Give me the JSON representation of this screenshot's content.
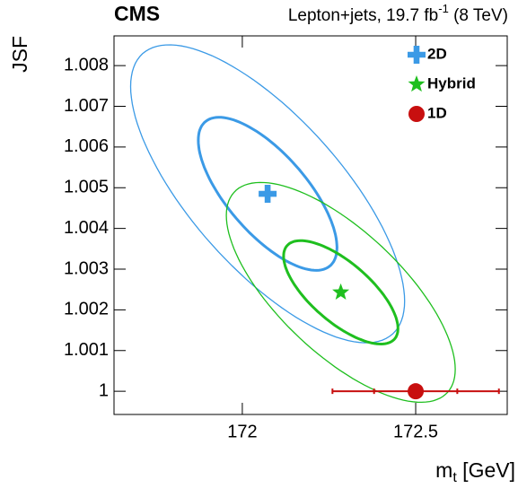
{
  "chart_data": {
    "type": "scatter",
    "title": "CMS",
    "subtitle": "Lepton+jets, 19.7 fb",
    "subtitle_sup": "-1",
    "subtitle_end": " (8 TeV)",
    "x_label": "m",
    "x_label_sub": "t",
    "x_label_end": " [GeV]",
    "y_label": "JSF",
    "xlim": [
      171.63,
      172.764
    ],
    "ylim": [
      0.99943,
      1.00873
    ],
    "xticks": [
      172,
      172.5
    ],
    "yticks": [
      1,
      1.001,
      1.002,
      1.003,
      1.004,
      1.005,
      1.006,
      1.007,
      1.008
    ],
    "legend": "upper right",
    "series": [
      {
        "name": "2D",
        "color": "#3b9ae6",
        "marker": "plus",
        "x": [
          172.073
        ],
        "y": [
          1.00485
        ],
        "ellipses": [
          {
            "sx": 0.2,
            "sy": 0.00188,
            "rho": -0.7,
            "line_width": 3
          },
          {
            "sx": 0.395,
            "sy": 0.00366,
            "rho": -0.72,
            "line_width": 1.3
          }
        ]
      },
      {
        "name": "Hybrid",
        "color": "#1fbf1f",
        "marker": "star",
        "x": [
          172.284
        ],
        "y": [
          1.00243
        ],
        "ellipses": [
          {
            "sx": 0.165,
            "sy": 0.00127,
            "rho": -0.7,
            "line_width": 3
          },
          {
            "sx": 0.33,
            "sy": 0.0027,
            "rho": -0.7,
            "line_width": 1.3
          }
        ]
      },
      {
        "name": "1D",
        "color": "#c80f0f",
        "marker": "circle",
        "x": [
          172.5
        ],
        "y": [
          1
        ],
        "xerr": [
          0.24
        ],
        "xerr_stat": [
          0.12
        ]
      }
    ]
  }
}
